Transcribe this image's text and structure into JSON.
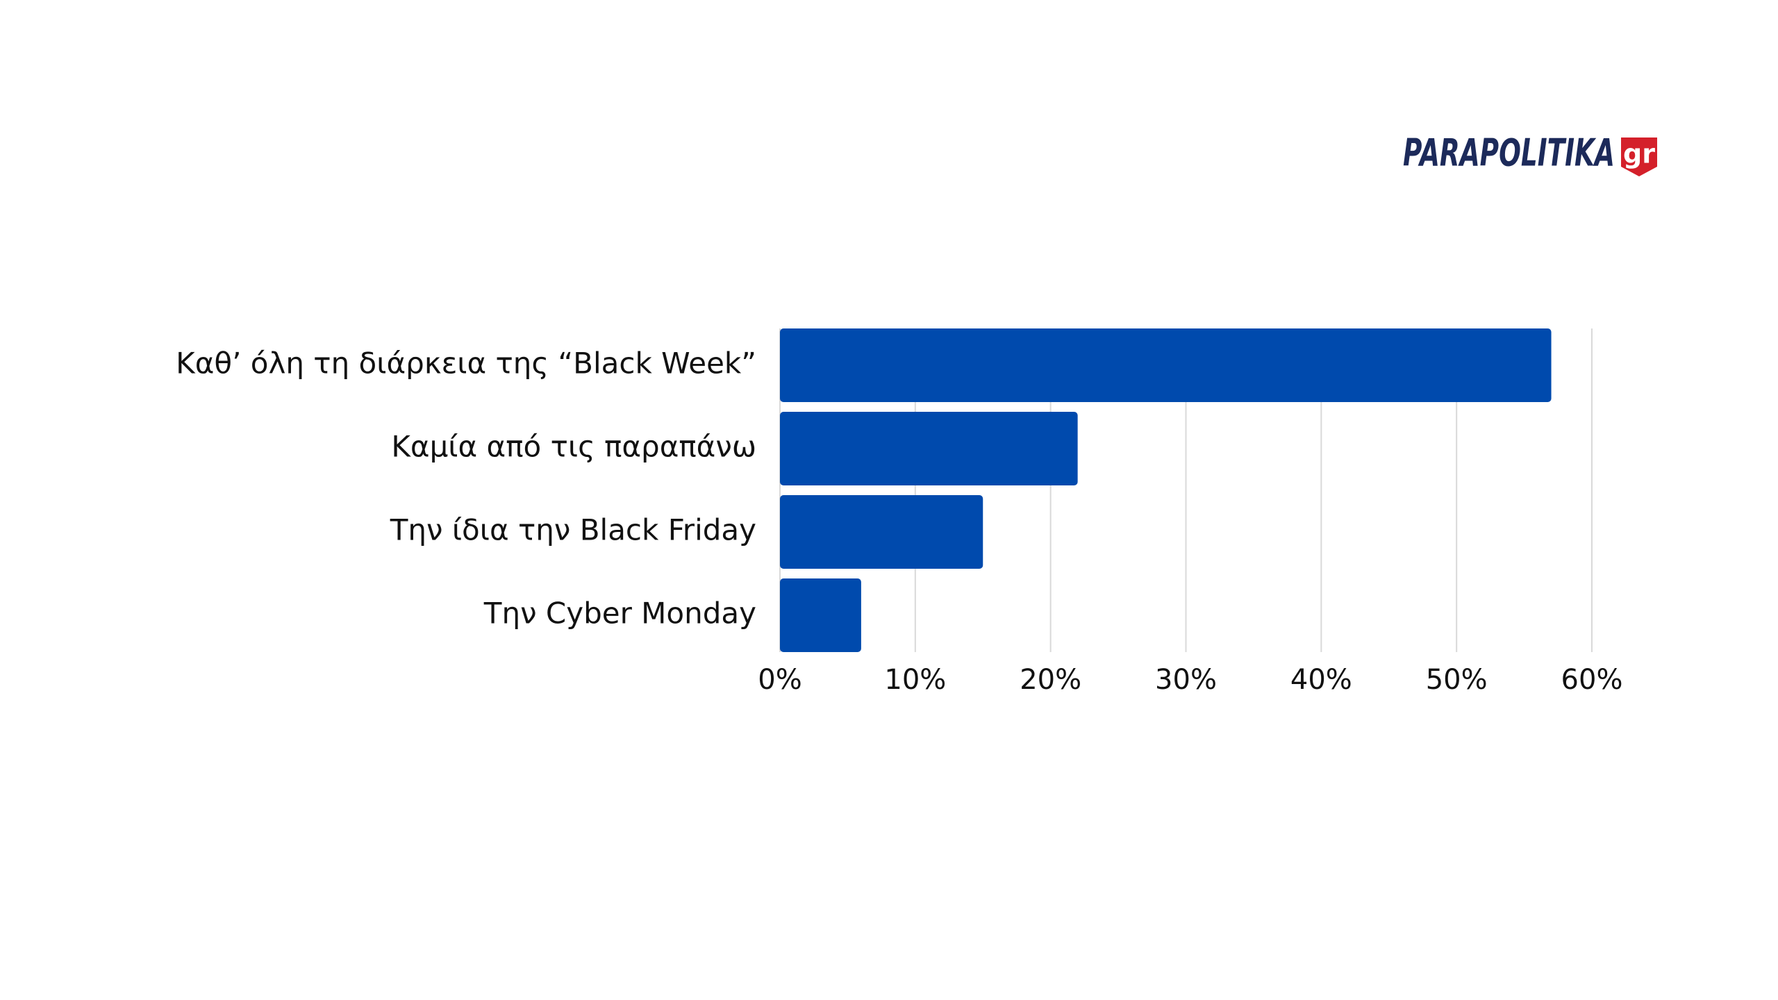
{
  "logo": {
    "name": "PARAPOLITIKA",
    "suffix": "gr"
  },
  "chart_data": {
    "type": "hbar",
    "categories": [
      "Καθ’ όλη τη διάρκεια της “Black Week”",
      "Καμία από τις παραπάνω",
      "Την ίδια την Black Friday",
      "Την Cyber Monday"
    ],
    "values": [
      57,
      22,
      15,
      6
    ],
    "color": "#004aad",
    "xlim": [
      0,
      60
    ],
    "xticks": [
      {
        "value": 0,
        "label": "0%"
      },
      {
        "value": 10,
        "label": "10%"
      },
      {
        "value": 20,
        "label": "20%"
      },
      {
        "value": 30,
        "label": "30%"
      },
      {
        "value": 40,
        "label": "40%"
      },
      {
        "value": 50,
        "label": "50%"
      },
      {
        "value": 60,
        "label": "60%"
      }
    ],
    "grid": true
  }
}
